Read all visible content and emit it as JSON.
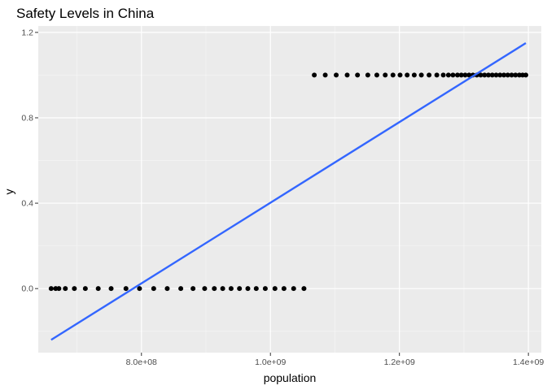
{
  "chart_data": {
    "type": "scatter",
    "title": "Safety Levels in China",
    "xlabel": "population",
    "ylabel": "y",
    "xlim": [
      640000000,
      1420000000
    ],
    "ylim": [
      -0.3,
      1.23
    ],
    "x_ticks": [
      {
        "value": 800000000,
        "label": "8.0e+08"
      },
      {
        "value": 1000000000,
        "label": "1.0e+09"
      },
      {
        "value": 1200000000,
        "label": "1.2e+09"
      },
      {
        "value": 1400000000,
        "label": "1.4e+09"
      }
    ],
    "y_ticks": [
      {
        "value": 0.0,
        "label": "0.0"
      },
      {
        "value": 0.4,
        "label": "0.4"
      },
      {
        "value": 0.8,
        "label": "0.8"
      },
      {
        "value": 1.2,
        "label": "1.2"
      }
    ],
    "grid": true,
    "series": [
      {
        "kind": "points",
        "color": "#000000",
        "x": [
          660000000,
          667000000,
          672000000,
          682000000,
          696000000,
          713000000,
          733000000,
          753000000,
          776000000,
          797000000,
          819000000,
          840000000,
          861000000,
          880000000,
          898000000,
          913000000,
          926000000,
          939000000,
          952000000,
          965000000,
          978000000,
          992000000,
          1007000000,
          1021000000,
          1036000000,
          1052000000,
          1068000000,
          1085000000,
          1102000000,
          1119000000,
          1135000000,
          1151000000,
          1165000000,
          1178000000,
          1190000000,
          1201000000,
          1212000000,
          1223000000,
          1234000000,
          1246000000,
          1258000000,
          1268000000,
          1276000000,
          1283000000,
          1290000000,
          1296000000,
          1302000000,
          1308000000,
          1314000000,
          1320000000,
          1326000000,
          1332000000,
          1338000000,
          1344000000,
          1350000000,
          1356000000,
          1362000000,
          1368000000,
          1374000000,
          1380000000,
          1386000000,
          1391000000,
          1396000000
        ],
        "y": [
          0,
          0,
          0,
          0,
          0,
          0,
          0,
          0,
          0,
          0,
          0,
          0,
          0,
          0,
          0,
          0,
          0,
          0,
          0,
          0,
          0,
          0,
          0,
          0,
          0,
          0,
          1,
          1,
          1,
          1,
          1,
          1,
          1,
          1,
          1,
          1,
          1,
          1,
          1,
          1,
          1,
          1,
          1,
          1,
          1,
          1,
          1,
          1,
          1,
          1,
          1,
          1,
          1,
          1,
          1,
          1,
          1,
          1,
          1,
          1,
          1,
          1,
          1
        ]
      },
      {
        "kind": "line",
        "color": "#3366FF",
        "x": [
          660000000,
          1396000000
        ],
        "y": [
          -0.24,
          1.15
        ]
      }
    ]
  }
}
